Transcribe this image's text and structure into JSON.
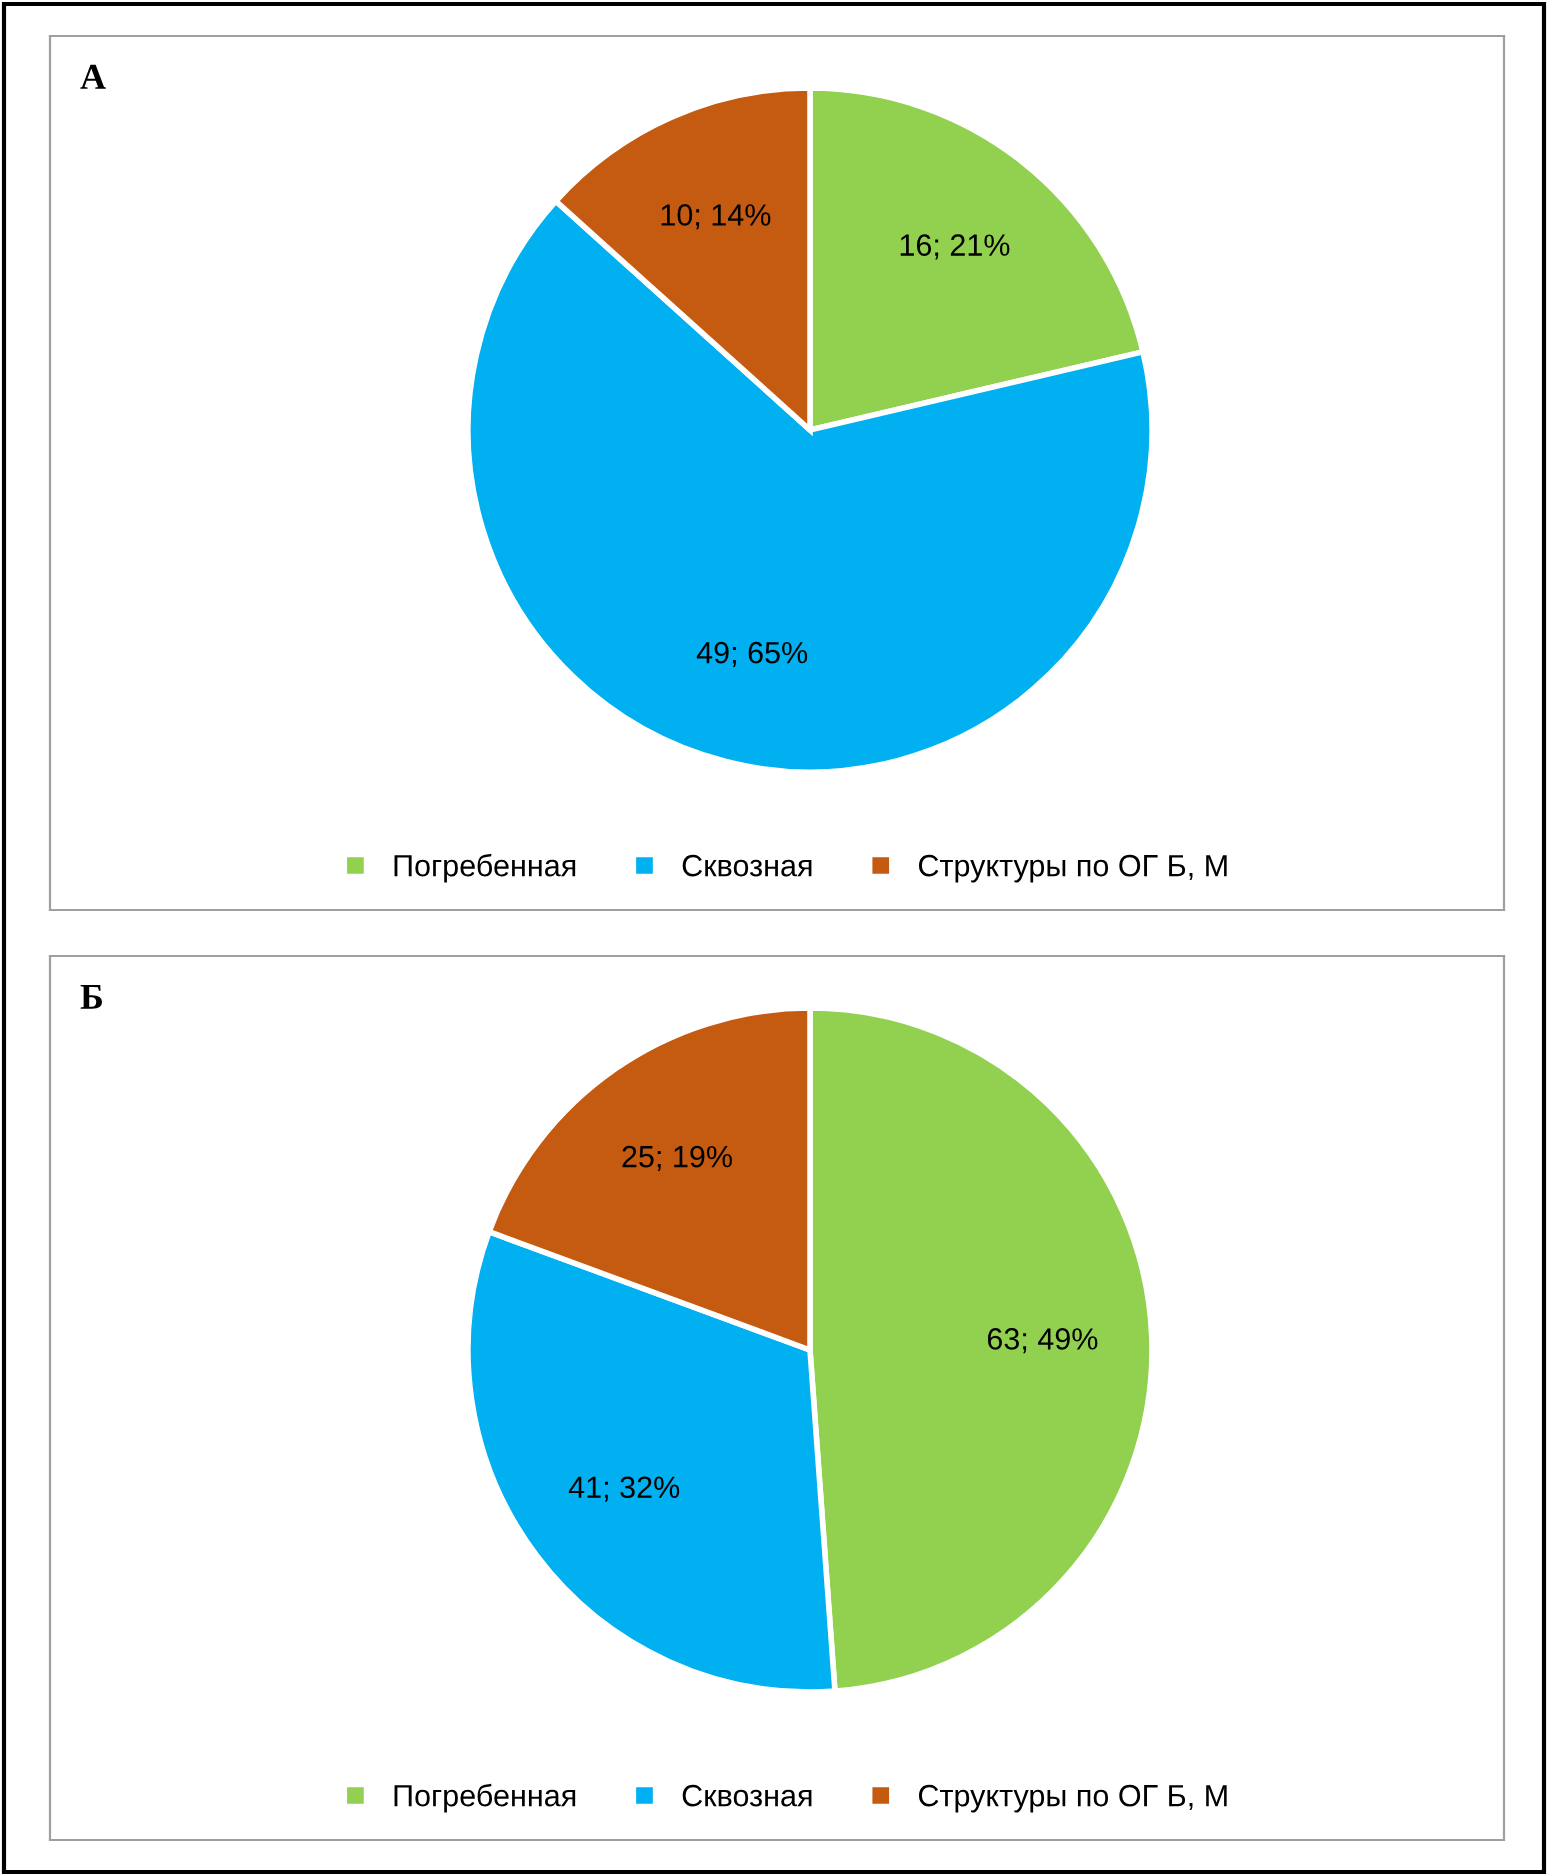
{
  "chart_data": [
    {
      "type": "pie",
      "title": "А",
      "categories": [
        "Погребенная",
        "Сквозная",
        "Структуры по ОГ Б, М"
      ],
      "values": [
        16,
        49,
        10
      ],
      "value_labels": [
        "16; 21%",
        "49; 65%",
        "10; 14%"
      ],
      "colors": [
        "#92d050",
        "#00b0f0",
        "#c55a11"
      ],
      "legend": "bottom"
    },
    {
      "type": "pie",
      "title": "Б",
      "categories": [
        "Погребенная",
        "Сквозная",
        "Структуры по ОГ Б, М"
      ],
      "values": [
        63,
        41,
        25
      ],
      "value_labels": [
        "63; 49%",
        "41; 32%",
        "25; 19%"
      ],
      "colors": [
        "#92d050",
        "#00b0f0",
        "#c55a11"
      ],
      "legend": "bottom"
    }
  ]
}
